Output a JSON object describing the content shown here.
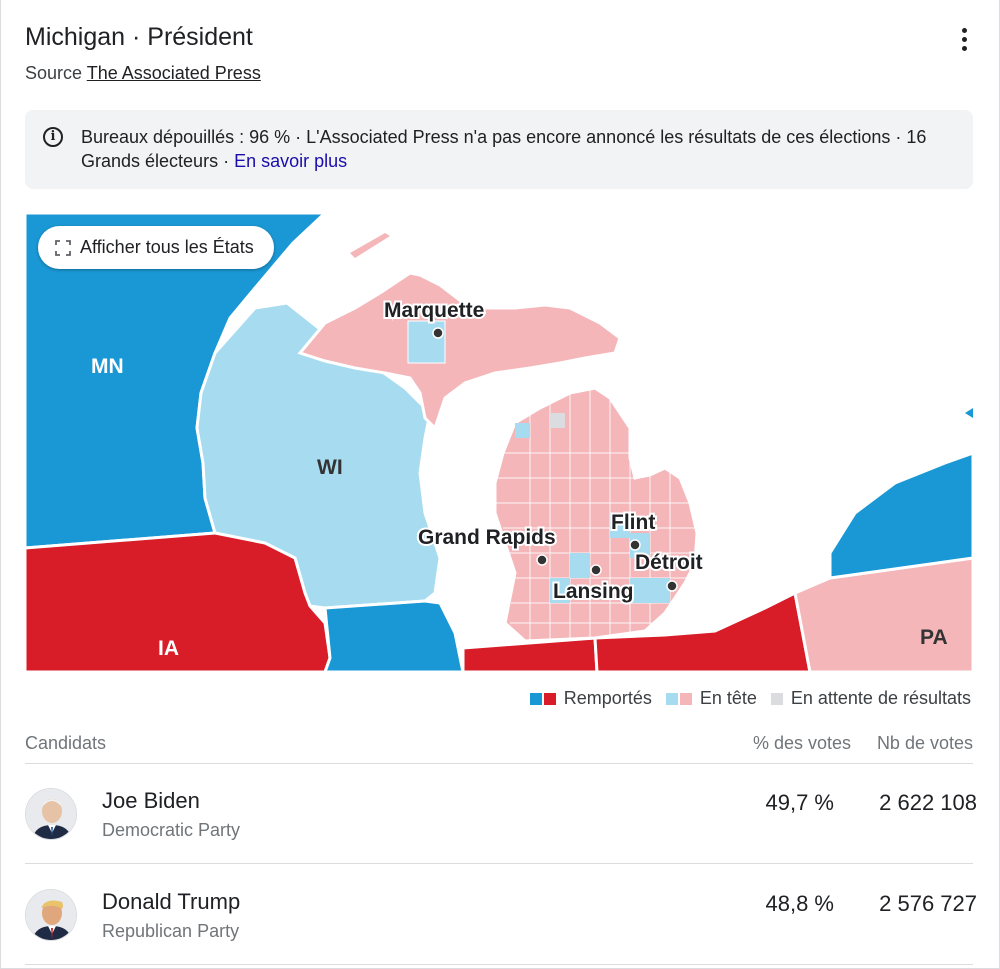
{
  "header": {
    "title": "Michigan · Président",
    "source_prefix": "Source",
    "source_link": "The Associated Press",
    "more_icon": "more-vert-icon"
  },
  "info": {
    "text": "Bureaux dépouillés : 96 % · L'Associated Press n'a pas encore annoncé les résultats de ces élections · 16 Grands électeurs · ",
    "link": "En savoir plus",
    "icon": "info-icon"
  },
  "map": {
    "show_all_button": "Afficher tous les États",
    "state_labels": {
      "mn": "MN",
      "wi": "WI",
      "ia": "IA",
      "pa": "PA"
    },
    "cities": {
      "marquette": "Marquette",
      "grand_rapids": "Grand Rapids",
      "flint": "Flint",
      "lansing": "Lansing",
      "detroit": "Détroit"
    },
    "colors": {
      "dem_won": "#1a98d5",
      "rep_won": "#d81c28",
      "dem_lead": "#a6dbf0",
      "rep_lead": "#f4b6b9",
      "pending": "#dadce0"
    }
  },
  "legend": {
    "won": "Remportés",
    "leading": "En tête",
    "pending": "En attente de résultats"
  },
  "table": {
    "headers": {
      "candidates": "Candidats",
      "pct": "% des votes",
      "votes": "Nb de votes"
    },
    "rows": [
      {
        "name": "Joe Biden",
        "party": "Democratic Party",
        "pct": "49,7 %",
        "votes": "2 622 108"
      },
      {
        "name": "Donald Trump",
        "party": "Republican Party",
        "pct": "48,8 %",
        "votes": "2 576 727"
      }
    ]
  }
}
